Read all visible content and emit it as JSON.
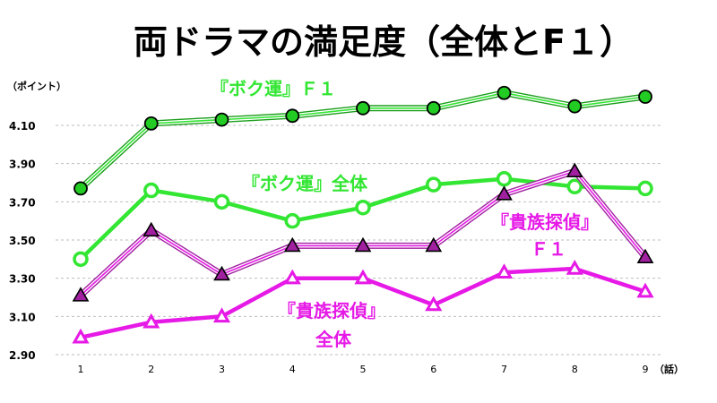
{
  "colors": {
    "green": "#33e633",
    "green_marker": "#22cc22",
    "magenta": "#e619e6",
    "purple_marker": "#a020a0"
  },
  "chart_data": {
    "type": "line",
    "title": "両ドラマの満足度（全体とF１）",
    "y_unit_label": "（ポイント）",
    "x_unit_label": "（話）",
    "categories": [
      "1",
      "2",
      "3",
      "4",
      "5",
      "6",
      "7",
      "8",
      "9"
    ],
    "ylim": [
      2.9,
      4.3
    ],
    "y_ticks": [
      "2.90",
      "3.10",
      "3.30",
      "3.50",
      "3.70",
      "3.90",
      "4.10"
    ],
    "y_tick_values": [
      2.9,
      3.1,
      3.3,
      3.5,
      3.7,
      3.9,
      4.1
    ],
    "grid": "horizontal dashed",
    "series": [
      {
        "name": "『ボク運』Ｆ１",
        "label_lines": [
          "『ボク運』Ｆ１"
        ],
        "style": "double",
        "marker": "filled-circle",
        "color": "#33e633",
        "values": [
          3.77,
          4.11,
          4.13,
          4.15,
          4.19,
          4.19,
          4.27,
          4.2,
          4.25
        ]
      },
      {
        "name": "『ボク運』全体",
        "label_lines": [
          "『ボク運』全体"
        ],
        "style": "solid",
        "marker": "open-circle",
        "color": "#33e633",
        "values": [
          3.4,
          3.76,
          3.7,
          3.6,
          3.67,
          3.79,
          3.82,
          3.78,
          3.77
        ]
      },
      {
        "name": "『貴族探偵』Ｆ１",
        "label_lines": [
          "『貴族探偵』",
          "Ｆ１"
        ],
        "style": "double",
        "marker": "filled-triangle",
        "color": "#e619e6",
        "values": [
          3.21,
          3.55,
          3.32,
          3.47,
          3.47,
          3.47,
          3.74,
          3.86,
          3.41
        ]
      },
      {
        "name": "『貴族探偵』全体",
        "label_lines": [
          "『貴族探偵』",
          "全体"
        ],
        "style": "solid",
        "marker": "open-triangle",
        "color": "#e619e6",
        "values": [
          2.99,
          3.07,
          3.1,
          3.3,
          3.3,
          3.16,
          3.33,
          3.35,
          3.23
        ]
      }
    ]
  }
}
